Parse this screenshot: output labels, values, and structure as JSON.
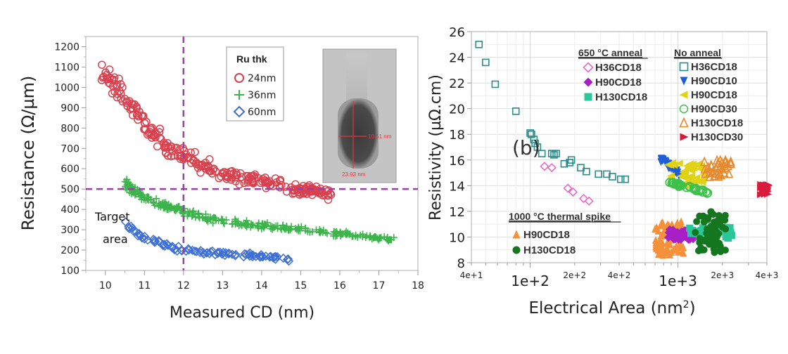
{
  "chart_data": [
    {
      "type": "scatter",
      "title": "",
      "xlabel": "Measured CD (nm)",
      "ylabel": "Resistance (Ω/µm)",
      "xlim": [
        9.5,
        18
      ],
      "ylim": [
        100,
        1250
      ],
      "xticks": [
        "10",
        "11",
        "12",
        "13",
        "14",
        "15",
        "16",
        "17",
        "18"
      ],
      "yticks": [
        "100",
        "200",
        "300",
        "400",
        "500",
        "600",
        "700",
        "800",
        "900",
        "1000",
        "1100",
        "1200"
      ],
      "grid": false,
      "legend": {
        "title": "Ru thk",
        "placement": "top-center"
      },
      "reference_lines": {
        "x": 12,
        "y": 500,
        "style": "dashed",
        "color": "#9b3fa6"
      },
      "annotation": "Target\narea",
      "inset_image": {
        "label_width": "10.51 nm",
        "label_height": "23.93 nm"
      },
      "series": [
        {
          "name": "24nm",
          "marker": "circle-open",
          "color": "#d9414e",
          "trend": {
            "x": [
              9.9,
              10.5,
              11.0,
              11.5,
              12.0,
              12.5,
              13.0,
              13.5,
              14.0,
              14.5,
              15.0,
              15.5,
              15.8
            ],
            "y": [
              1060,
              960,
              820,
              720,
              660,
              620,
              580,
              560,
              540,
              520,
              500,
              485,
              470
            ]
          }
        },
        {
          "name": "36nm",
          "marker": "plus",
          "color": "#3cb44b",
          "trend": {
            "x": [
              10.5,
              11.0,
              11.5,
              12.0,
              12.5,
              13.0,
              13.5,
              14.0,
              15.0,
              16.0,
              17.0,
              17.5
            ],
            "y": [
              520,
              460,
              420,
              390,
              360,
              340,
              330,
              320,
              300,
              280,
              260,
              245
            ]
          }
        },
        {
          "name": "60nm",
          "marker": "diamond-open",
          "color": "#3d6fd6",
          "trend": {
            "x": [
              10.5,
              11.0,
              11.5,
              12.0,
              12.5,
              13.0,
              13.5,
              14.0,
              14.5,
              14.7
            ],
            "y": [
              330,
              260,
              230,
              200,
              190,
              180,
              175,
              170,
              160,
              150
            ]
          }
        }
      ]
    },
    {
      "type": "scatter",
      "title": "",
      "panel_label": "(b)",
      "xlabel": "Electrical Area (nm²)",
      "ylabel": "Resistivity (µΩ.cm)",
      "xscale": "log",
      "xlim": [
        40,
        4000
      ],
      "ylim": [
        8,
        26
      ],
      "xticks": [
        "4e+1",
        "1e+2",
        "2e+2",
        "4e+2",
        "1e+3",
        "2e+3",
        "4e+3"
      ],
      "yticks": [
        "8",
        "10",
        "12",
        "14",
        "16",
        "18",
        "20",
        "22",
        "24",
        "26"
      ],
      "grid": true,
      "legend_groups": [
        {
          "title": "650 °C anneal",
          "placement": "top-center",
          "entries": [
            {
              "name": "H36CD18",
              "marker": "diamond-open",
              "color": "#e86bc8"
            },
            {
              "name": "H90CD18",
              "marker": "diamond-filled",
              "color": "#a61fc7"
            },
            {
              "name": "H130CD18",
              "marker": "square-filled",
              "color": "#2bc79a"
            }
          ]
        },
        {
          "title": "No anneal",
          "placement": "top-right",
          "entries": [
            {
              "name": "H36CD18",
              "marker": "square-open",
              "color": "#2a8c8c"
            },
            {
              "name": "H90CD10",
              "marker": "triangle-down",
              "color": "#1f5fd6"
            },
            {
              "name": "H90CD18",
              "marker": "triangle-left",
              "color": "#e0d316"
            },
            {
              "name": "H90CD30",
              "marker": "circle-open",
              "color": "#3cc24a"
            },
            {
              "name": "H130CD18",
              "marker": "triangle-open",
              "color": "#e8892e"
            },
            {
              "name": "H130CD30",
              "marker": "triangle-right",
              "color": "#d81b3c"
            }
          ]
        },
        {
          "title": "1000 °C thermal spike",
          "placement": "bottom-left",
          "entries": [
            {
              "name": "H90CD18",
              "marker": "triangle-up",
              "color": "#f5913a"
            },
            {
              "name": "H130CD18",
              "marker": "circle-filled",
              "color": "#14761e"
            }
          ]
        }
      ],
      "series": [
        {
          "name": "No anneal H36CD18",
          "x": [
            45,
            50,
            58,
            80,
            100,
            102,
            106,
            108,
            112,
            120,
            140,
            145,
            150,
            170,
            185,
            190,
            220,
            240,
            290,
            330,
            360,
            410,
            440
          ],
          "y": [
            25.0,
            23.6,
            21.9,
            19.8,
            18.1,
            18.0,
            17.6,
            17.3,
            17.0,
            16.5,
            16.5,
            16.4,
            16.5,
            15.7,
            15.8,
            16.0,
            15.4,
            15.1,
            14.9,
            14.9,
            14.7,
            14.5,
            14.5
          ]
        },
        {
          "name": "650C H36CD18",
          "x": [
            125,
            140,
            180,
            195,
            230,
            250
          ],
          "y": [
            15.5,
            15.4,
            13.8,
            13.5,
            13.0,
            12.8
          ]
        },
        {
          "name": "No anneal H90CD10",
          "range_x": [
            750,
            1050
          ],
          "range_y": [
            14.8,
            16.2
          ]
        },
        {
          "name": "No anneal H90CD18",
          "range_x": [
            850,
            1500
          ],
          "range_y": [
            14.0,
            15.8
          ]
        },
        {
          "name": "No anneal H90CD30",
          "range_x": [
            850,
            1600
          ],
          "range_y": [
            13.3,
            14.3
          ]
        },
        {
          "name": "No anneal H130CD18",
          "range_x": [
            1500,
            2300
          ],
          "range_y": [
            14.5,
            16.0
          ]
        },
        {
          "name": "No anneal H130CD30",
          "range_x": [
            3600,
            4100
          ],
          "range_y": [
            13.3,
            14.1
          ]
        },
        {
          "name": "Spike H90CD18",
          "range_x": [
            700,
            1100
          ],
          "range_y": [
            8.5,
            11.2
          ]
        },
        {
          "name": "650C H90CD18",
          "range_x": [
            850,
            1300
          ],
          "range_y": [
            9.8,
            10.6
          ]
        },
        {
          "name": "650C H130CD18",
          "range_x": [
            1200,
            2400
          ],
          "range_y": [
            9.9,
            10.8
          ]
        },
        {
          "name": "Spike H130CD18",
          "range_x": [
            1300,
            2100
          ],
          "range_y": [
            8.8,
            12.0
          ]
        }
      ]
    }
  ]
}
